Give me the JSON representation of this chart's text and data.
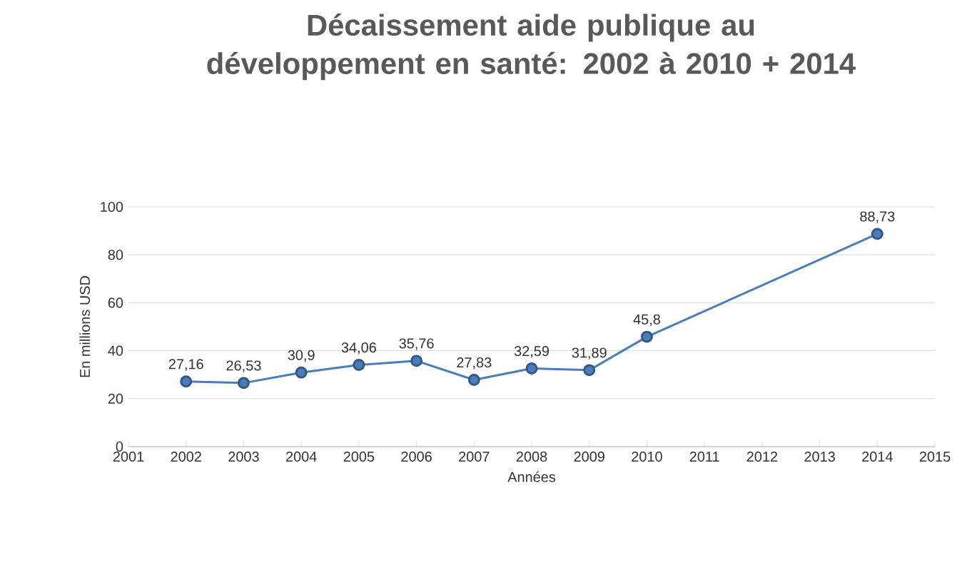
{
  "chart_data": {
    "type": "line",
    "title": "Décaissement aide publique au développement en santé: 2002 à 2010 + 2014",
    "xlabel": "Années",
    "ylabel": "En millions USD",
    "x": [
      2002,
      2003,
      2004,
      2005,
      2006,
      2007,
      2008,
      2009,
      2010,
      2014
    ],
    "values": [
      27.16,
      26.53,
      30.9,
      34.06,
      35.76,
      27.83,
      32.59,
      31.89,
      45.8,
      88.73
    ],
    "value_labels": [
      "27,16",
      "26,53",
      "30,9",
      "34,06",
      "35,76",
      "27,83",
      "32,59",
      "31,89",
      "45,8",
      "88,73"
    ],
    "color": "#4a7ebb",
    "marker": "circle",
    "grid": "y",
    "xlim": [
      2001,
      2015
    ],
    "xticks": [
      2001,
      2002,
      2003,
      2004,
      2005,
      2006,
      2007,
      2008,
      2009,
      2010,
      2011,
      2012,
      2013,
      2014,
      2015
    ],
    "ylim": [
      0,
      100
    ],
    "yticks": [
      0,
      20,
      40,
      60,
      80,
      100
    ]
  }
}
